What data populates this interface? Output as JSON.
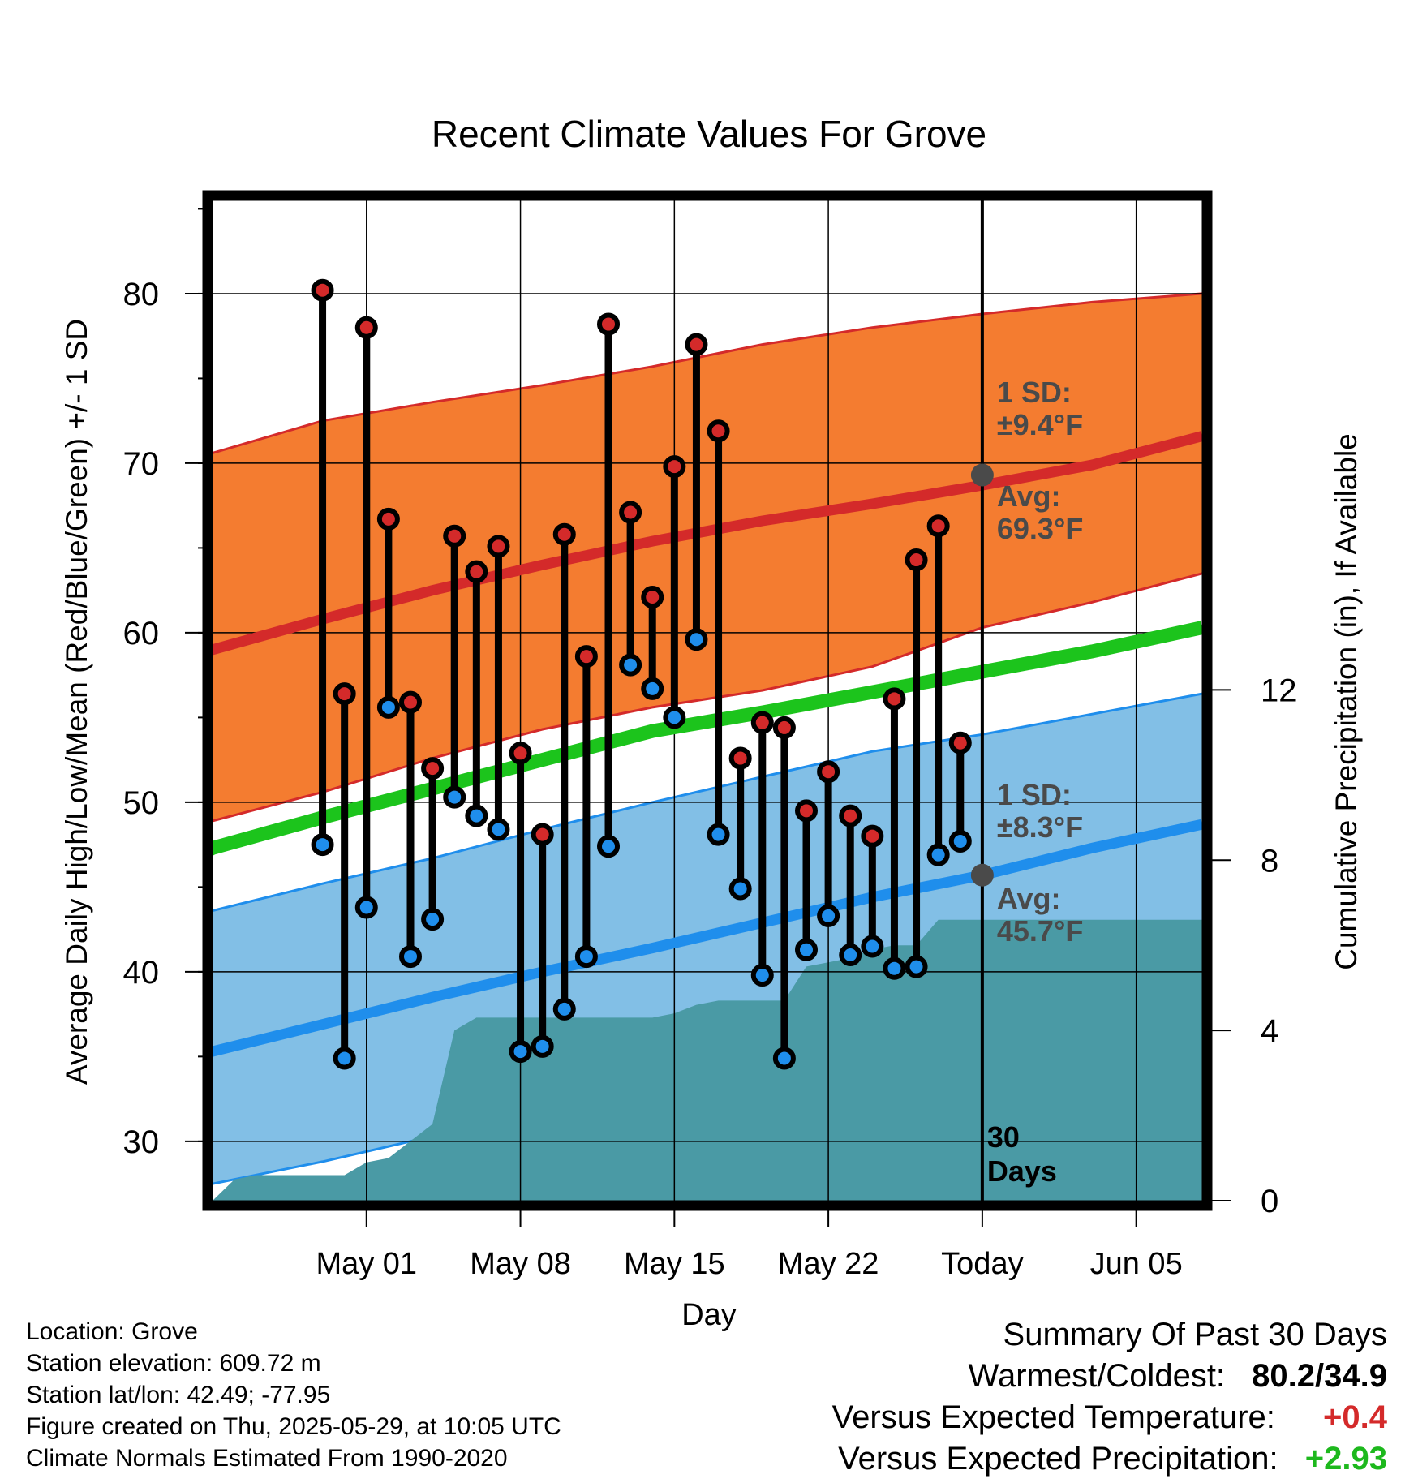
{
  "chart_data": {
    "type": "line",
    "title": "Recent Climate Values For Grove",
    "xlabel": "Day",
    "ylabel": "Average Daily High/Low/Mean (Red/Blue/Green) +/- 1 SD",
    "y2label": "Cumulative Precipitation (in), If Available",
    "ylim": [
      26.5,
      85.5
    ],
    "y2lim": [
      0,
      23.5
    ],
    "yticks": [
      30,
      40,
      50,
      60,
      70,
      80
    ],
    "y2ticks": [
      0,
      4,
      8,
      12
    ],
    "x_range_days": [
      -35,
      10
    ],
    "x_tick_labels": [
      {
        "day": -28,
        "label": "May 01"
      },
      {
        "day": -21,
        "label": "May 08"
      },
      {
        "day": -14,
        "label": "May 15"
      },
      {
        "day": -7,
        "label": "May 22"
      },
      {
        "day": 0,
        "label": "Today"
      },
      {
        "day": 7,
        "label": "Jun 05"
      }
    ],
    "days": [
      -30,
      -29,
      -28,
      -27,
      -26,
      -25,
      -24,
      -23,
      -22,
      -21,
      -20,
      -19,
      -18,
      -17,
      -16,
      -15,
      -14,
      -13,
      -12,
      -11,
      -10,
      -9,
      -8,
      -7,
      -6,
      -5,
      -4,
      -3,
      -2,
      -1
    ],
    "daily_high": [
      80.2,
      56.4,
      78.0,
      66.7,
      55.9,
      52.0,
      65.7,
      63.6,
      65.1,
      52.9,
      48.1,
      65.8,
      58.6,
      78.2,
      67.1,
      62.1,
      69.8,
      77.0,
      71.9,
      52.6,
      54.7,
      54.4,
      49.5,
      51.8,
      49.2,
      48.0,
      56.1,
      64.3,
      66.3,
      53.5
    ],
    "daily_low": [
      47.5,
      34.9,
      43.8,
      55.6,
      40.9,
      43.1,
      50.3,
      49.2,
      48.4,
      35.3,
      35.6,
      37.8,
      40.9,
      47.4,
      58.1,
      56.7,
      55.0,
      59.6,
      48.1,
      44.9,
      39.8,
      34.9,
      41.3,
      43.3,
      41.0,
      41.5,
      40.2,
      40.3,
      46.9,
      47.7
    ],
    "normals_days": [
      -36,
      -35,
      -30,
      -25,
      -20,
      -15,
      -10,
      -5,
      0,
      5,
      10
    ],
    "normal_high": [
      58.6,
      59.0,
      60.8,
      62.5,
      64.0,
      65.4,
      66.6,
      67.6,
      68.7,
      69.9,
      71.6
    ],
    "normal_high_sd_upper": [
      70.2,
      70.6,
      72.5,
      73.6,
      74.6,
      75.7,
      77.0,
      78.0,
      78.8,
      79.5,
      80.0
    ],
    "normal_high_sd_lower": [
      48.4,
      48.9,
      50.6,
      52.6,
      54.3,
      55.6,
      56.6,
      58.0,
      60.3,
      61.8,
      63.5
    ],
    "normal_mean": [
      46.6,
      47.3,
      49.1,
      50.8,
      52.5,
      54.2,
      55.3,
      56.5,
      57.7,
      58.9,
      60.3
    ],
    "normal_low": [
      34.9,
      35.3,
      36.9,
      38.5,
      40.0,
      41.4,
      42.9,
      44.4,
      45.7,
      47.3,
      48.7
    ],
    "normal_low_sd_upper": [
      43.3,
      43.6,
      45.2,
      46.7,
      48.4,
      50.0,
      51.5,
      53.0,
      54.0,
      55.2,
      56.4
    ],
    "normal_low_sd_lower": [
      27.0,
      27.5,
      28.8,
      30.3,
      31.8,
      33.2,
      34.4,
      35.7,
      37.0,
      38.3,
      39.5
    ],
    "precip_days": [
      -35,
      -34,
      -33,
      -32,
      -31,
      -30,
      -29,
      -28,
      -27,
      -26,
      -25,
      -24,
      -23,
      -22,
      -21,
      -20,
      -19,
      -18,
      -17,
      -16,
      -15,
      -14,
      -13,
      -12,
      -11,
      -10,
      -9,
      -8,
      -7,
      -6,
      -5,
      -4,
      -3,
      -2,
      -1,
      0,
      10
    ],
    "precip_cumulative": [
      0.0,
      0.5,
      0.6,
      0.6,
      0.6,
      0.6,
      0.6,
      0.9,
      1.0,
      1.4,
      1.8,
      4.0,
      4.3,
      4.3,
      4.3,
      4.3,
      4.3,
      4.3,
      4.3,
      4.3,
      4.3,
      4.4,
      4.6,
      4.7,
      4.7,
      4.7,
      4.7,
      5.5,
      5.6,
      5.7,
      5.9,
      6.0,
      6.0,
      6.6,
      6.6,
      6.6,
      6.6
    ],
    "today_avg_high": 69.3,
    "today_avg_low": 45.7,
    "annotations": {
      "high_sd_label": "1 SD:",
      "high_sd_value": "±9.4°F",
      "high_avg_label": "Avg:",
      "high_avg_value": "69.3°F",
      "low_sd_label": "1 SD:",
      "low_sd_value": "±8.3°F",
      "low_avg_label": "Avg:",
      "low_avg_value": "45.7°F",
      "days_count": "30",
      "days_label": "Days"
    },
    "colors": {
      "high_band": "#f47c30",
      "high_line": "#d42a2a",
      "low_band": "#82bfe6",
      "low_line": "#1f8eec",
      "mean_line": "#1cc41c",
      "precip": "#4a9aa5",
      "high_marker": "#d42a2a",
      "low_marker": "#1f8eec",
      "annotation_text": "#4a4a4a",
      "positive_temp": "#d42a2a",
      "positive_precip": "#1db81d"
    },
    "grid": true
  },
  "info": {
    "location": "Location: Grove",
    "elevation": "Station elevation: 609.72 m",
    "latlon": "Station lat/lon: 42.49; -77.95",
    "created": "Figure created on Thu, 2025-05-29, at 10:05 UTC",
    "normals": "Climate Normals Estimated From 1990-2020"
  },
  "summary": {
    "title": "Summary Of Past 30 Days",
    "warmest_coldest_label": "Warmest/Coldest:",
    "warmest_coldest_value": "80.2/34.9",
    "temp_label": "Versus Expected Temperature:",
    "temp_value": "+0.4",
    "precip_label": "Versus Expected Precipitation:",
    "precip_value": "+2.93"
  }
}
